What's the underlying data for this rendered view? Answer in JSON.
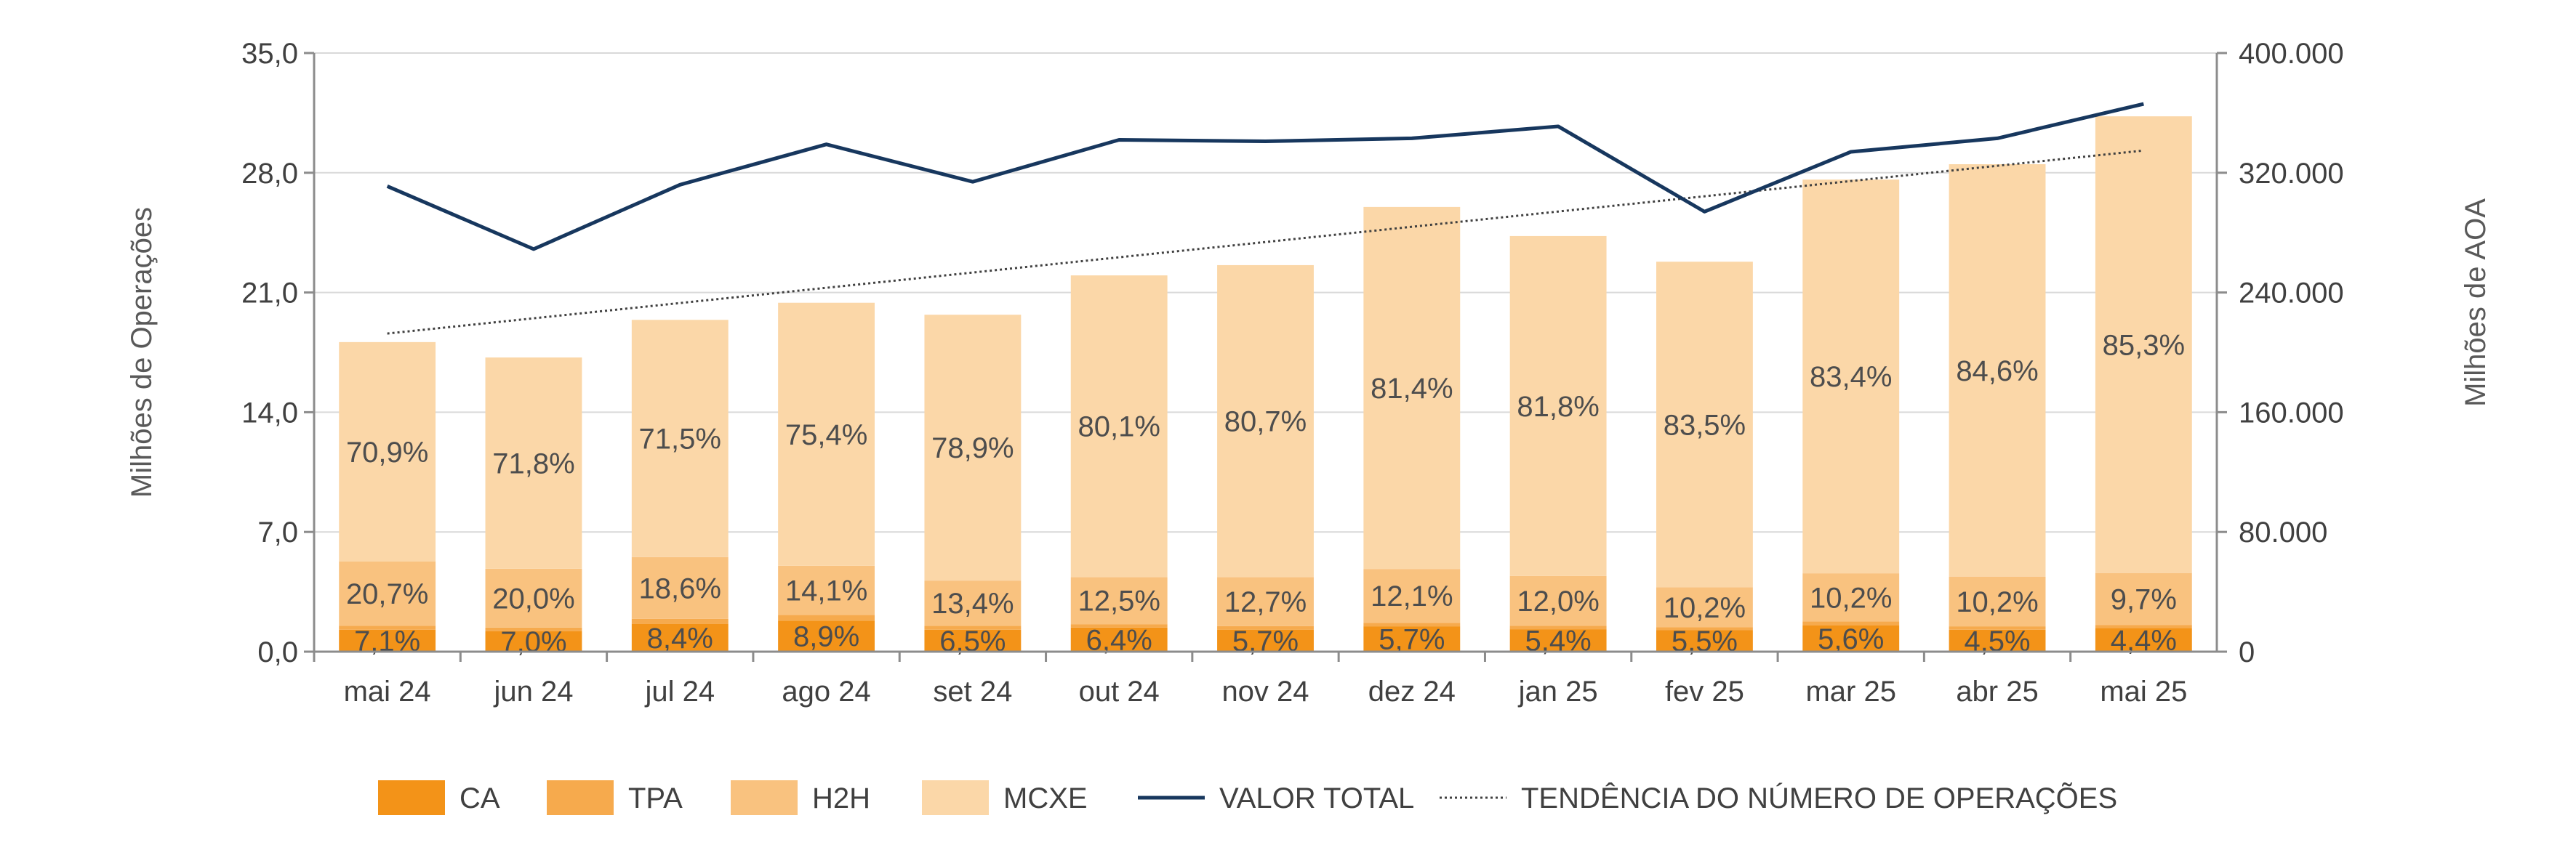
{
  "chart_data": {
    "type": "bar",
    "stacked": true,
    "categories": [
      "mai 24",
      "jun 24",
      "jul 24",
      "ago 24",
      "set 24",
      "out 24",
      "nov 24",
      "dez 24",
      "jan 25",
      "fev 25",
      "mar 25",
      "abr 25",
      "mai 25"
    ],
    "total_operations": [
      18.1,
      17.2,
      19.4,
      20.4,
      19.7,
      22.0,
      22.6,
      26.0,
      24.3,
      22.8,
      27.6,
      28.5,
      31.3
    ],
    "series": [
      {
        "name": "CA",
        "color": "#F39318",
        "values": [
          7.1,
          7.0,
          8.4,
          8.9,
          6.5,
          6.4,
          5.7,
          5.7,
          5.4,
          5.5,
          5.6,
          4.5,
          4.4
        ],
        "labels": [
          "7,1%",
          "7,0%",
          "8,4%",
          "8,9%",
          "6,5%",
          "6,4%",
          "5,7%",
          "5,7%",
          "5,4%",
          "5,5%",
          "5,6%",
          "4,5%",
          "4,4%"
        ]
      },
      {
        "name": "TPA",
        "color": "#F6AA4D",
        "values": [
          1.3,
          1.2,
          1.5,
          1.6,
          1.2,
          0.9,
          0.9,
          0.8,
          0.8,
          0.8,
          0.8,
          0.7,
          0.6
        ],
        "labels": [
          "",
          "",
          "",
          "",
          "",
          "",
          "",
          "",
          "",
          "",
          "",
          "",
          ""
        ]
      },
      {
        "name": "H2H",
        "color": "#F9C27F",
        "values": [
          20.7,
          20.0,
          18.6,
          14.1,
          13.4,
          12.5,
          12.7,
          12.1,
          12.0,
          10.2,
          10.2,
          10.2,
          9.7
        ],
        "labels": [
          "20,7%",
          "20,0%",
          "18,6%",
          "14,1%",
          "13,4%",
          "12,5%",
          "12,7%",
          "12,1%",
          "12,0%",
          "10,2%",
          "10,2%",
          "10,2%",
          "9,7%"
        ]
      },
      {
        "name": "MCXE",
        "color": "#FBD7A8",
        "values": [
          70.9,
          71.8,
          71.5,
          75.4,
          78.9,
          80.1,
          80.7,
          81.4,
          81.8,
          83.5,
          83.4,
          84.6,
          85.3
        ],
        "labels": [
          "70,9%",
          "71,8%",
          "71,5%",
          "75,4%",
          "78,9%",
          "80,1%",
          "80,7%",
          "81,4%",
          "81,8%",
          "83,5%",
          "83,4%",
          "84,6%",
          "85,3%"
        ]
      }
    ],
    "line": {
      "name": "VALOR TOTAL",
      "color": "#17375E",
      "axis": "right",
      "values": [
        311000,
        269000,
        312000,
        339000,
        314000,
        342000,
        341000,
        343000,
        351000,
        294000,
        334000,
        343000,
        366000
      ]
    },
    "trend": {
      "name": "TENDÊNCIA DO NÚMERO DE OPERAÇÕES",
      "color": "#404040",
      "axis": "left",
      "start": 18.6,
      "end": 29.3
    },
    "y_left": {
      "label": "Milhões de Operações",
      "min": 0,
      "max": 35,
      "ticks": [
        "0,0",
        "7,0",
        "14,0",
        "21,0",
        "28,0",
        "35,0"
      ]
    },
    "y_right": {
      "label": "Milhões de AOA",
      "min": 0,
      "max": 400000,
      "ticks": [
        "0",
        "80.000",
        "160.000",
        "240.000",
        "320.000",
        "400.000"
      ]
    },
    "grid": true,
    "legend_position": "bottom"
  }
}
